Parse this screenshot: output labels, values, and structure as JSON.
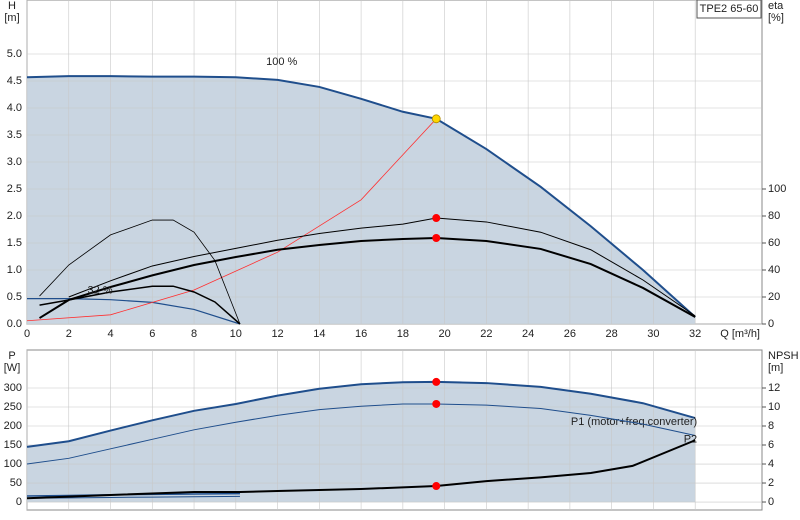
{
  "chart_data": [
    {
      "type": "line",
      "model": "TPE2 65-60",
      "ylabel": [
        "H",
        "[m]"
      ],
      "y2label": [
        "eta",
        "[%]"
      ],
      "xlabel": "Q [m³/h]",
      "annotations": [
        "100 %",
        "32 %"
      ],
      "xlim": [
        0,
        35.2
      ],
      "xticks": [
        0,
        2,
        4,
        6,
        8,
        10,
        12,
        14,
        16,
        18,
        20,
        22,
        24,
        26,
        28,
        30,
        32
      ],
      "ylim": [
        0,
        6
      ],
      "yticks": [
        {
          "value": 0,
          "label": "0.0"
        },
        0.5,
        {
          "value": 1,
          "label": "1.0"
        },
        1.5,
        {
          "value": 2,
          "label": "2.0"
        },
        2.5,
        {
          "value": 3,
          "label": "3.0"
        },
        3.5,
        {
          "value": 4,
          "label": "4.0"
        },
        4.5,
        {
          "value": 5,
          "label": "5.0"
        }
      ],
      "y2lim": [
        0,
        240
      ],
      "y2ticks": [
        0,
        20,
        40,
        60,
        80,
        100
      ],
      "grid": true,
      "series": [
        {
          "color": "#1f4e8c",
          "fill": "#c9d5e1",
          "width": 2,
          "x": [
            0,
            2,
            4,
            6,
            8,
            10,
            12,
            14,
            16,
            18,
            19.6,
            22,
            24.6,
            27,
            29.5,
            32
          ],
          "values": [
            4.57,
            4.59,
            4.59,
            4.58,
            4.58,
            4.57,
            4.52,
            4.39,
            4.17,
            3.93,
            3.8,
            3.24,
            2.54,
            1.81,
            1.0,
            0.13
          ]
        },
        {
          "color": "#1f4e8c",
          "width": 1.2,
          "x": [
            0,
            2,
            4,
            6,
            8,
            10.2
          ],
          "values": [
            0.47,
            0.47,
            0.45,
            0.4,
            0.27,
            0
          ]
        },
        {
          "color": "#ff3030",
          "width": 0.8,
          "x": [
            0,
            4,
            8,
            12,
            16,
            19.6
          ],
          "values": [
            0.06,
            0.17,
            0.63,
            1.33,
            2.3,
            3.8
          ]
        },
        {
          "color": "#000000",
          "width": 1,
          "axis": "y2",
          "x": [
            2,
            4,
            6,
            8,
            10,
            12,
            14,
            16,
            18,
            19.6,
            22,
            24.6,
            27,
            29.5,
            32
          ],
          "values": [
            20,
            32,
            43,
            50,
            56,
            62,
            67,
            71,
            74,
            78.5,
            75.6,
            68,
            55,
            32.6,
            6
          ]
        },
        {
          "color": "#000000",
          "width": 2,
          "axis": "y2",
          "x": [
            0.6,
            2,
            4,
            6,
            8,
            10,
            12,
            14,
            16,
            18,
            19.6,
            22,
            24.6,
            27,
            29.5,
            32
          ],
          "values": [
            4.4,
            17.8,
            27.4,
            36,
            43.7,
            49.6,
            55,
            58.5,
            61.5,
            63,
            63.7,
            61.5,
            55.6,
            44.4,
            26.7,
            5.2
          ]
        },
        {
          "color": "#000000",
          "width": 0.8,
          "axis": "y2",
          "x": [
            0.6,
            2,
            4,
            6,
            7,
            8,
            9,
            10.2
          ],
          "values": [
            20.7,
            43.7,
            66,
            77,
            77,
            68,
            47,
            0
          ]
        },
        {
          "color": "#000000",
          "width": 1.5,
          "axis": "y2",
          "x": [
            0.6,
            2,
            4,
            6,
            7,
            8,
            9,
            10.2
          ],
          "values": [
            14,
            17.8,
            23.7,
            28,
            28,
            23.7,
            16.3,
            0
          ]
        }
      ],
      "points": [
        {
          "x": 19.6,
          "y": 3.8,
          "color": "#ffd700"
        },
        {
          "x": 19.6,
          "y": 78.5,
          "color": "#ff0000",
          "axis": "y2"
        },
        {
          "x": 19.6,
          "y": 63.7,
          "color": "#ff0000",
          "axis": "y2"
        }
      ]
    },
    {
      "type": "line",
      "ylabel": [
        "P",
        "[W]"
      ],
      "y2label": [
        "NPSH",
        "[m]"
      ],
      "xlim": [
        0,
        35.2
      ],
      "xticks": [
        0,
        2,
        4,
        6,
        8,
        10,
        12,
        14,
        16,
        18,
        20,
        22,
        24,
        26,
        28,
        30,
        32
      ],
      "ylim": [
        -21,
        400
      ],
      "yticks": [
        0,
        50,
        100,
        150,
        200,
        250,
        300
      ],
      "y2lim": [
        -0.84,
        16
      ],
      "y2ticks": [
        0,
        2,
        4,
        6,
        8,
        10,
        12
      ],
      "grid": true,
      "series": [
        {
          "name": "P1 (motor+freq.converter)",
          "color": "#1f4e8c",
          "fill": "#c9d5e1",
          "width": 2,
          "x": [
            0,
            2,
            4,
            6,
            8,
            10,
            12,
            14,
            16,
            18,
            19.6,
            22,
            24.6,
            27,
            29.5,
            32
          ],
          "values": [
            145,
            160,
            188,
            215,
            240,
            258,
            280,
            298,
            310,
            315,
            316,
            313,
            303,
            285,
            260,
            221
          ]
        },
        {
          "name": "P2",
          "color": "#1f4e8c",
          "width": 1,
          "x": [
            0,
            2,
            4,
            6,
            8,
            10,
            12,
            14,
            16,
            18,
            19.6,
            22,
            24.6,
            27,
            29.5,
            32
          ],
          "values": [
            100,
            115,
            140,
            165,
            190,
            210,
            228,
            243,
            252,
            258,
            258,
            255,
            246,
            228,
            205,
            175
          ]
        },
        {
          "color": "#1f4e8c",
          "width": 1.5,
          "x": [
            0,
            2,
            4,
            6,
            8,
            10.2
          ],
          "values": [
            16,
            17,
            19,
            20,
            21,
            22
          ]
        },
        {
          "color": "#1f4e8c",
          "width": 1,
          "x": [
            0,
            2,
            4,
            6,
            8,
            10.2
          ],
          "values": [
            10,
            11,
            12,
            13,
            14,
            15
          ]
        },
        {
          "color": "#000000",
          "width": 2,
          "axis": "y2",
          "x": [
            0,
            4,
            8,
            10.2,
            12,
            16,
            19.6,
            22,
            24.6,
            27,
            29,
            32
          ],
          "values": [
            0.4,
            0.74,
            1.05,
            1.05,
            1.16,
            1.37,
            1.68,
            2.2,
            2.6,
            3.05,
            3.8,
            6.5
          ]
        }
      ],
      "points": [
        {
          "x": 19.6,
          "y": 316,
          "color": "#ff0000"
        },
        {
          "x": 19.6,
          "y": 258,
          "color": "#ff0000"
        },
        {
          "x": 19.6,
          "y": 1.68,
          "color": "#ff0000",
          "axis": "y2"
        }
      ]
    }
  ]
}
